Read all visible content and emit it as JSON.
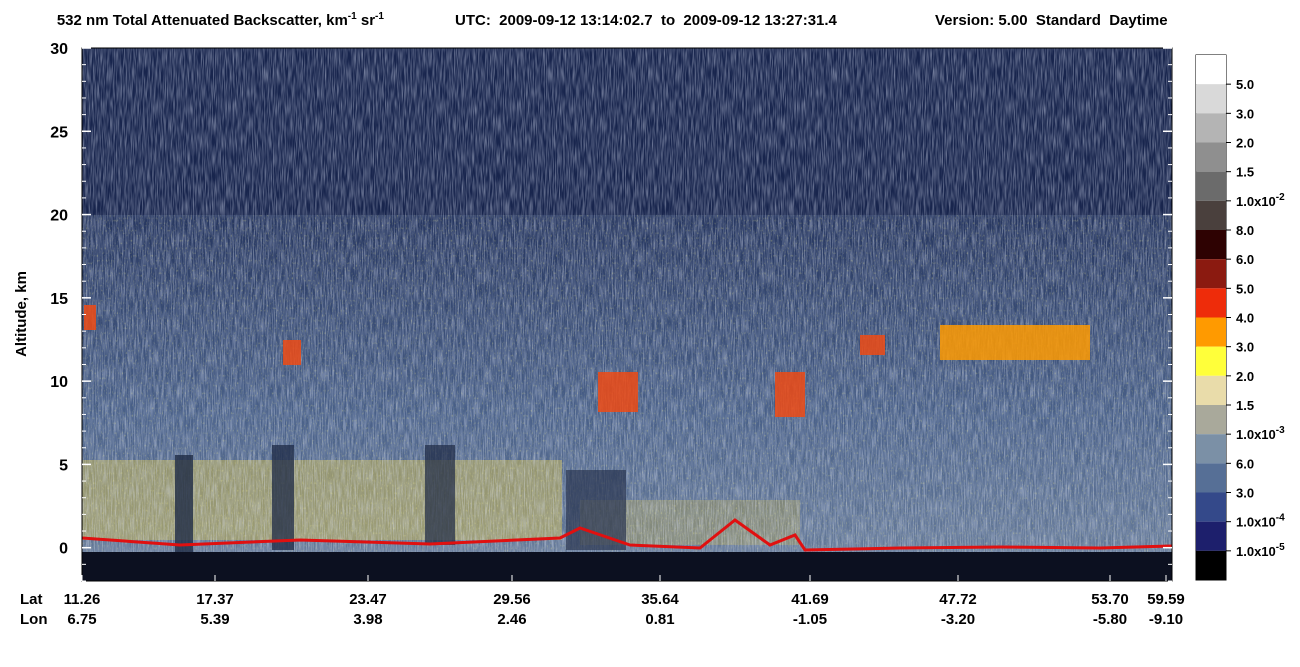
{
  "chart_data": {
    "type": "heatmap",
    "title_parts": [
      "532 nm Total Attenuated Backscatter, km",
      "-1",
      " sr",
      "-1"
    ],
    "time_range": "UTC:  2009-09-12 13:14:02.7  to  2009-09-12 13:27:31.4",
    "version": "Version: 5.00  Standard  Daytime",
    "y_label": "Altitude, km",
    "ylim": [
      -2,
      30
    ],
    "yticks": [
      0,
      5,
      10,
      15,
      20,
      25,
      30
    ],
    "x_row_labels": [
      "Lat",
      "Lon"
    ],
    "lat": [
      "11.26",
      "17.37",
      "23.47",
      "29.56",
      "35.64",
      "41.69",
      "47.72",
      "53.70",
      "59.59"
    ],
    "lon": [
      "6.75",
      "5.39",
      "3.98",
      "2.46",
      "0.81",
      "-1.05",
      "-3.20",
      "-5.80",
      "-9.10"
    ],
    "colorbar": {
      "colors": [
        "#ffffff",
        "#d9d9d9",
        "#b4b4b4",
        "#8f8f8f",
        "#6b6b6b",
        "#4a403d",
        "#2e0202",
        "#8b1a10",
        "#ee2c0a",
        "#ff9a00",
        "#ffff3a",
        "#e9dcaa",
        "#a9a99b",
        "#7b90a6",
        "#566f96",
        "#34498a",
        "#1d1f6c",
        "#000000"
      ],
      "labels": [
        {
          "text": "5.0"
        },
        {
          "text": "3.0"
        },
        {
          "text": "2.0"
        },
        {
          "text": "1.5"
        },
        {
          "text": "1.0x10",
          "sup": "-2"
        },
        {
          "text": "8.0"
        },
        {
          "text": "6.0"
        },
        {
          "text": "5.0"
        },
        {
          "text": "4.0"
        },
        {
          "text": "3.0"
        },
        {
          "text": "2.0"
        },
        {
          "text": "1.5"
        },
        {
          "text": "1.0x10",
          "sup": "-3"
        },
        {
          "text": "6.0"
        },
        {
          "text": "3.0"
        },
        {
          "text": "1.0x10",
          "sup": "-4"
        },
        {
          "text": "1.0x10",
          "sup": "-5"
        }
      ]
    }
  }
}
